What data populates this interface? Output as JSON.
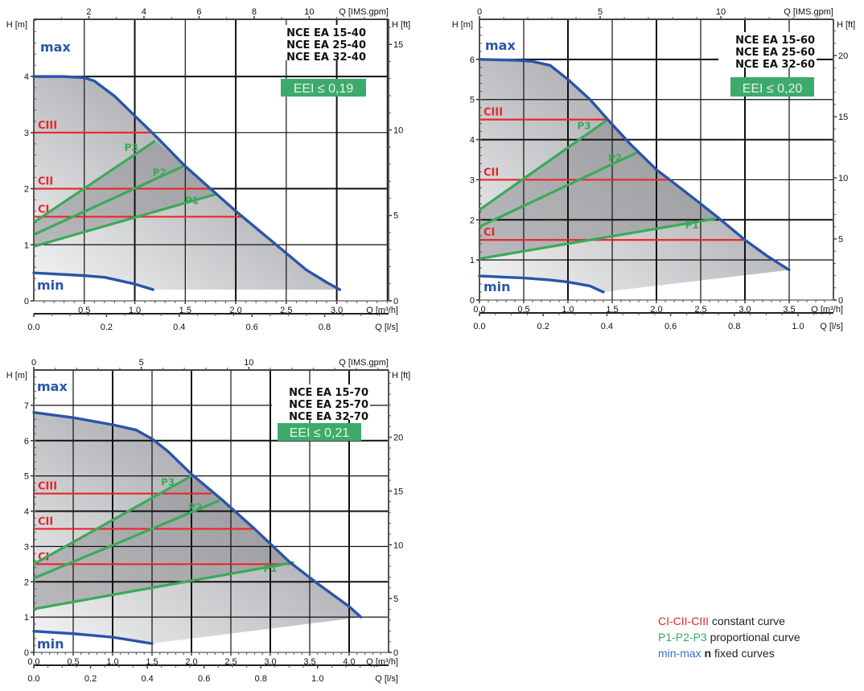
{
  "colors": {
    "max_min": "#2a55a8",
    "constant": "#e8262b",
    "proportional": "#3aaa5a",
    "eei_bg": "#3daa6c",
    "legend_min_max": "#3a6fc0"
  },
  "chart_data": [
    {
      "type": "line",
      "title": [
        "NCE EA 15-40",
        "NCE EA 25-40",
        "NCE EA 32-40"
      ],
      "eei": "EEI ≤ 0,19",
      "xlabel": "Q [m³/h]",
      "ylabel": "H [m]",
      "x2label": "Q [IMS.gpm]",
      "x3label": "Q [l/s]",
      "y2label": "H [ft]",
      "xlim": [
        0,
        3.513
      ],
      "ylim": [
        0,
        5.02
      ],
      "xticks": [
        0.5,
        1.0,
        1.5,
        2.0,
        2.5,
        3.0
      ],
      "xtick_labels": [
        "0.5",
        "1.0",
        "1.5",
        "2.0",
        "2.5",
        "3.0"
      ],
      "yticks": [
        0,
        1,
        2,
        3,
        4
      ],
      "ytick_labels": [
        "0",
        "1",
        "2",
        "3",
        "4"
      ],
      "gpm_ticks": [
        2,
        4,
        6,
        8,
        10
      ],
      "gpm_labels": [
        "2",
        "4",
        "6",
        "8",
        "10"
      ],
      "ls_ticks": [
        0.0,
        0.2,
        0.4,
        0.6,
        0.8
      ],
      "ls_labels": [
        "0.0",
        "0.2",
        "0.4",
        "0.6",
        "0.8"
      ],
      "ft_ticks": [
        0,
        5,
        10,
        15
      ],
      "ft_labels": [
        "0",
        "5",
        "10",
        "15"
      ],
      "grid": true,
      "labels": {
        "max": "max",
        "min": "min",
        "c1": "CI",
        "c2": "CII",
        "c3": "CIII",
        "p1": "P1",
        "p2": "P2",
        "p3": "P3"
      },
      "series": [
        {
          "name": "max",
          "x": [
            0.0,
            0.3,
            0.5,
            0.6,
            0.8,
            1.0,
            1.2,
            1.5,
            2.0,
            2.5,
            2.7,
            2.9,
            3.03
          ],
          "y": [
            4.0,
            4.0,
            3.98,
            3.92,
            3.65,
            3.3,
            2.95,
            2.4,
            1.6,
            0.85,
            0.55,
            0.33,
            0.2
          ]
        },
        {
          "name": "min",
          "x": [
            0.0,
            0.5,
            0.7,
            1.0,
            1.18
          ],
          "y": [
            0.5,
            0.45,
            0.42,
            0.3,
            0.2
          ]
        },
        {
          "name": "CI",
          "x": [
            0.0,
            2.08
          ],
          "y": [
            1.5,
            1.5
          ]
        },
        {
          "name": "CII",
          "x": [
            0.0,
            1.73
          ],
          "y": [
            2.0,
            2.0
          ]
        },
        {
          "name": "CIII",
          "x": [
            0.0,
            1.15
          ],
          "y": [
            3.0,
            3.0
          ]
        },
        {
          "name": "P1",
          "x": [
            0.0,
            1.8
          ],
          "y": [
            0.97,
            1.9
          ]
        },
        {
          "name": "P2",
          "x": [
            0.0,
            1.48
          ],
          "y": [
            1.18,
            2.4
          ]
        },
        {
          "name": "P3",
          "x": [
            0.0,
            1.2
          ],
          "y": [
            1.4,
            2.85
          ]
        }
      ],
      "region_floor": {
        "x": [
          1.18,
          3.03
        ],
        "y": [
          0.2,
          0.2
        ]
      }
    },
    {
      "type": "line",
      "title": [
        "NCE EA 15-60",
        "NCE EA 25-60",
        "NCE EA 32-60"
      ],
      "eei": "EEI ≤ 0,20",
      "xlabel": "Q [m³/h]",
      "ylabel": "H [m]",
      "x2label": "Q [IMS.gpm]",
      "x3label": "Q [l/s]",
      "y2label": "H [ft]",
      "xlim": [
        0,
        4.0
      ],
      "ylim": [
        0,
        7.0
      ],
      "xticks": [
        0.0,
        0.5,
        1.0,
        1.5,
        2.0,
        2.5,
        3.0,
        3.5
      ],
      "xtick_labels": [
        "0.0",
        "0.5",
        "1.0",
        "1.5",
        "2.0",
        "2.5",
        "3.0",
        "3.5"
      ],
      "yticks": [
        0,
        1,
        2,
        3,
        4,
        5,
        6
      ],
      "ytick_labels": [
        "0",
        "1",
        "2",
        "3",
        "4",
        "5",
        "6"
      ],
      "gpm_ticks": [
        0,
        5,
        10
      ],
      "gpm_labels": [
        "0",
        "5",
        "10"
      ],
      "ls_ticks": [
        0.0,
        0.2,
        0.4,
        0.6,
        0.8,
        1.0
      ],
      "ls_labels": [
        "0.0",
        "0.2",
        "0.4",
        "0.6",
        "0.8",
        "1.0"
      ],
      "ft_ticks": [
        0,
        5,
        10,
        15,
        20
      ],
      "ft_labels": [
        "0",
        "5",
        "10",
        "15",
        "20"
      ],
      "grid": true,
      "labels": {
        "max": "max",
        "min": "min",
        "c1": "CI",
        "c2": "CII",
        "c3": "CIII",
        "p1": "P1",
        "p2": "P2",
        "p3": "P3"
      },
      "series": [
        {
          "name": "max",
          "x": [
            0.0,
            0.4,
            0.6,
            0.8,
            1.0,
            1.25,
            1.45,
            1.7,
            2.0,
            2.15,
            2.5,
            2.7,
            3.0,
            3.25,
            3.5
          ],
          "y": [
            6.0,
            5.98,
            5.95,
            5.85,
            5.5,
            5.0,
            4.5,
            3.9,
            3.25,
            3.0,
            2.4,
            2.05,
            1.5,
            1.1,
            0.75
          ]
        },
        {
          "name": "min",
          "x": [
            0.0,
            0.5,
            0.8,
            1.0,
            1.25,
            1.4
          ],
          "y": [
            0.6,
            0.55,
            0.5,
            0.45,
            0.35,
            0.2
          ]
        },
        {
          "name": "CI",
          "x": [
            0.0,
            3.0
          ],
          "y": [
            1.5,
            1.5
          ]
        },
        {
          "name": "CII",
          "x": [
            0.0,
            2.15
          ],
          "y": [
            3.0,
            3.0
          ]
        },
        {
          "name": "CIII",
          "x": [
            0.0,
            1.45
          ],
          "y": [
            4.5,
            4.5
          ]
        },
        {
          "name": "P1",
          "x": [
            0.0,
            2.67
          ],
          "y": [
            1.03,
            2.03
          ]
        },
        {
          "name": "P2",
          "x": [
            0.0,
            1.8
          ],
          "y": [
            1.83,
            3.7
          ]
        },
        {
          "name": "P3",
          "x": [
            0.0,
            1.45
          ],
          "y": [
            2.25,
            4.5
          ]
        }
      ],
      "region_floor": {
        "x": [
          1.4,
          3.5
        ],
        "y": [
          0.2,
          0.75
        ]
      }
    },
    {
      "type": "line",
      "title": [
        "NCE EA 15-70",
        "NCE EA 25-70",
        "NCE EA 32-70"
      ],
      "eei": "EEI ≤ 0,21",
      "xlabel": "Q [m³/h]",
      "ylabel": "H [m]",
      "x2label": "Q [IMS.gpm]",
      "x3label": "Q [l/s]",
      "y2label": "H [ft]",
      "xlim": [
        0,
        4.5
      ],
      "ylim": [
        0,
        8.0
      ],
      "xticks": [
        0.0,
        0.5,
        1.0,
        1.5,
        2.0,
        2.5,
        3.0,
        3.5,
        4.0
      ],
      "xtick_labels": [
        "0.0",
        "0.5",
        "1.0",
        "1.5",
        "2.0",
        "2.5",
        "3.0",
        "3.5",
        "4.0"
      ],
      "yticks": [
        0,
        1,
        2,
        3,
        4,
        5,
        6,
        7
      ],
      "ytick_labels": [
        "0",
        "1",
        "2",
        "3",
        "4",
        "5",
        "6",
        "7"
      ],
      "gpm_ticks": [
        0,
        5,
        10
      ],
      "gpm_labels": [
        "0",
        "5",
        "10"
      ],
      "ls_ticks": [
        0.0,
        0.2,
        0.4,
        0.6,
        0.8,
        1.0
      ],
      "ls_labels": [
        "0.0",
        "0.2",
        "0.4",
        "0.6",
        "0.8",
        "1.0"
      ],
      "ft_ticks": [
        0,
        5,
        10,
        15,
        20
      ],
      "ft_labels": [
        "0",
        "5",
        "10",
        "15",
        "20"
      ],
      "grid": true,
      "labels": {
        "max": "max",
        "min": "min",
        "c1": "CI",
        "c2": "CII",
        "c3": "CIII",
        "p1": "P1",
        "p2": "P2",
        "p3": "P3"
      },
      "series": [
        {
          "name": "max",
          "x": [
            0.0,
            0.5,
            1.0,
            1.3,
            1.5,
            1.7,
            2.0,
            2.4,
            2.8,
            3.25,
            3.6,
            4.0,
            4.15
          ],
          "y": [
            6.8,
            6.65,
            6.45,
            6.3,
            6.05,
            5.7,
            5.05,
            4.3,
            3.5,
            2.55,
            1.95,
            1.3,
            1.0
          ]
        },
        {
          "name": "min",
          "x": [
            0.0,
            0.5,
            1.0,
            1.5
          ],
          "y": [
            0.6,
            0.53,
            0.43,
            0.25
          ]
        },
        {
          "name": "CI",
          "x": [
            0.0,
            3.25
          ],
          "y": [
            2.5,
            2.5
          ]
        },
        {
          "name": "CII",
          "x": [
            0.0,
            2.8
          ],
          "y": [
            3.5,
            3.5
          ]
        },
        {
          "name": "CIII",
          "x": [
            0.0,
            2.25
          ],
          "y": [
            4.5,
            4.5
          ]
        },
        {
          "name": "P1",
          "x": [
            0.0,
            3.3
          ],
          "y": [
            1.23,
            2.55
          ]
        },
        {
          "name": "P2",
          "x": [
            0.0,
            2.35
          ],
          "y": [
            2.1,
            4.3
          ]
        },
        {
          "name": "P3",
          "x": [
            0.0,
            2.0
          ],
          "y": [
            2.5,
            5.0
          ]
        }
      ],
      "region_floor": {
        "x": [
          1.5,
          4.15
        ],
        "y": [
          0.25,
          1.0
        ]
      }
    }
  ],
  "legend": {
    "items": [
      {
        "key": "CI-CII-CIII",
        "text": " constant curve"
      },
      {
        "key": "P1-P2-P3",
        "text": " proportional curve"
      },
      {
        "key": "min-max",
        "bold": " n",
        "text": " fixed curves"
      }
    ]
  }
}
